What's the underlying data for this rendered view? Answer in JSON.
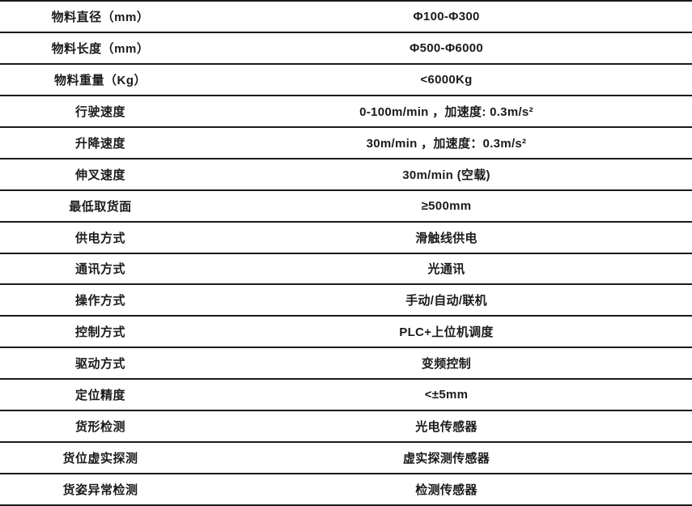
{
  "colors": {
    "border": "#1b1b1b",
    "text": "#1b1b1b",
    "background": "#ffffff"
  },
  "table": {
    "rows": [
      {
        "label": "物料直径（mm）",
        "value": "Φ100-Φ300"
      },
      {
        "label": "物料长度（mm）",
        "value": "Φ500-Φ6000"
      },
      {
        "label": "物料重量（Kg）",
        "value": "<6000Kg"
      },
      {
        "label": "行驶速度",
        "value": "0-100m/min ，加速度: 0.3m/s²"
      },
      {
        "label": "升降速度",
        "value": "30m/min ，加速度：0.3m/s²"
      },
      {
        "label": "伸叉速度",
        "value": "30m/min (空载)"
      },
      {
        "label": "最低取货面",
        "value": "≥500mm"
      },
      {
        "label": "供电方式",
        "value": "滑触线供电"
      },
      {
        "label": "通讯方式",
        "value": "光通讯"
      },
      {
        "label": "操作方式",
        "value": "手动/自动/联机"
      },
      {
        "label": "控制方式",
        "value": "PLC+上位机调度"
      },
      {
        "label": "驱动方式",
        "value": "变频控制"
      },
      {
        "label": "定位精度",
        "value": "<±5mm"
      },
      {
        "label": "货形检测",
        "value": "光电传感器"
      },
      {
        "label": "货位虚实探测",
        "value": "虚实探测传感器"
      },
      {
        "label": "货姿异常检测",
        "value": "检测传感器"
      }
    ]
  }
}
